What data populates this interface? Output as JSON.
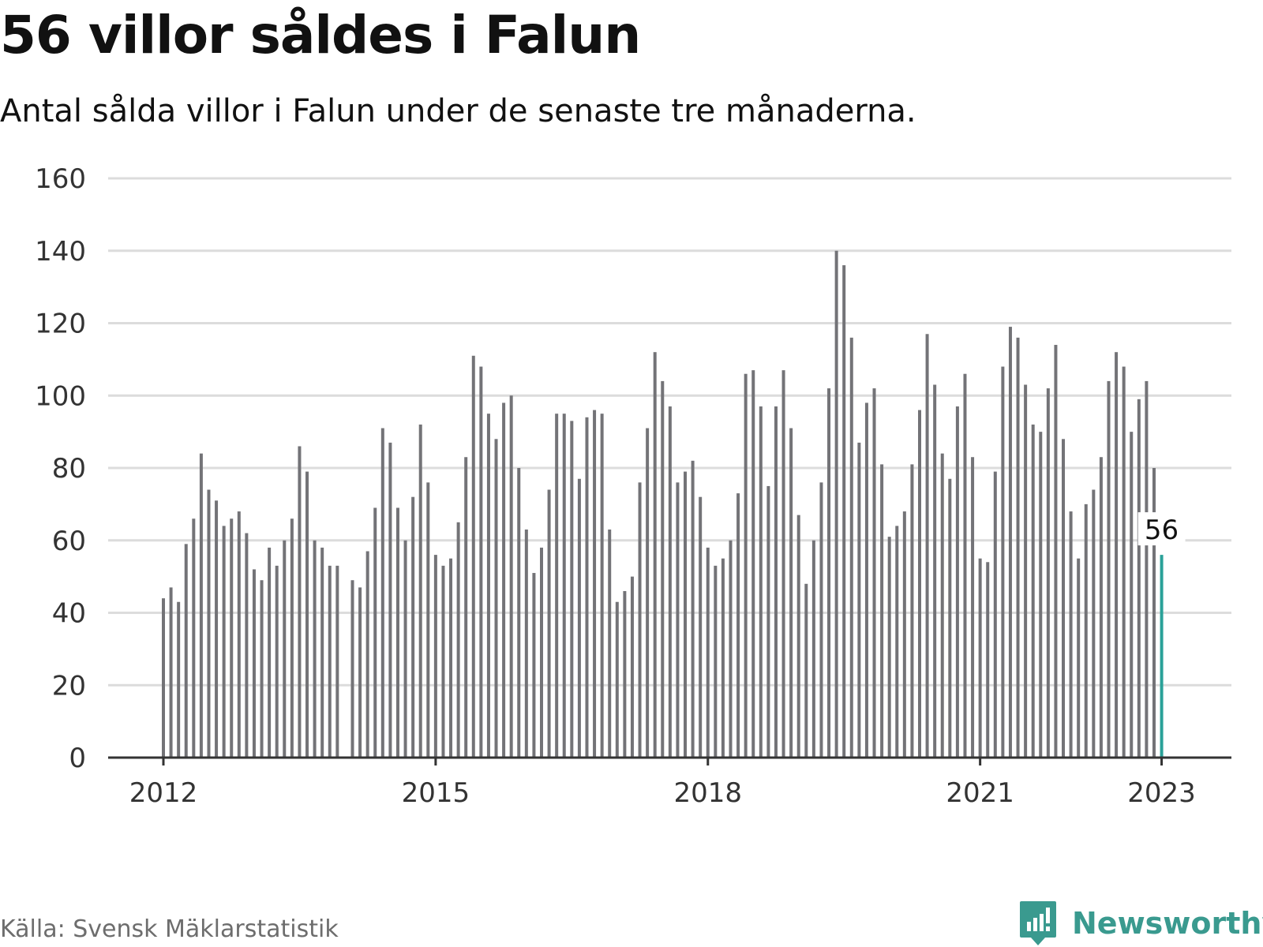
{
  "title": "56 villor såldes i Falun",
  "subtitle": "Antal sålda villor i Falun under de senaste tre månaderna.",
  "source": "Källa: Svensk Mäklarstatistik",
  "brand": "Newsworthy",
  "colors": {
    "bar": "#737377",
    "highlight": "#2aa198",
    "grid": "#dcdcdc",
    "axis": "#333333",
    "brand": "#3a9a8f"
  },
  "chart_data": {
    "type": "bar",
    "title": "56 villor såldes i Falun",
    "xlabel": "",
    "ylabel": "",
    "ylim": [
      0,
      160
    ],
    "yticks": [
      "0",
      "20",
      "40",
      "60",
      "80",
      "100",
      "120",
      "140",
      "160"
    ],
    "xticks": [
      "2012",
      "2015",
      "2018",
      "2021",
      "2023"
    ],
    "grid": true,
    "highlight_label": "56",
    "values": [
      44,
      47,
      43,
      59,
      66,
      84,
      74,
      71,
      64,
      66,
      68,
      62,
      52,
      49,
      58,
      53,
      60,
      66,
      86,
      79,
      60,
      58,
      53,
      53,
      null,
      49,
      47,
      57,
      69,
      91,
      87,
      69,
      60,
      72,
      92,
      76,
      56,
      53,
      55,
      65,
      83,
      111,
      108,
      95,
      88,
      98,
      100,
      80,
      63,
      51,
      58,
      74,
      95,
      95,
      93,
      77,
      94,
      96,
      95,
      63,
      43,
      46,
      50,
      76,
      91,
      112,
      104,
      97,
      76,
      79,
      82,
      72,
      58,
      53,
      55,
      60,
      73,
      106,
      107,
      97,
      75,
      97,
      107,
      91,
      67,
      48,
      60,
      76,
      102,
      140,
      136,
      116,
      87,
      98,
      102,
      81,
      61,
      64,
      68,
      81,
      96,
      117,
      103,
      84,
      77,
      97,
      106,
      83,
      55,
      54,
      79,
      108,
      119,
      116,
      103,
      92,
      90,
      102,
      114,
      88,
      68,
      55,
      70,
      74,
      83,
      104,
      112,
      108,
      90,
      99,
      104,
      80,
      56
    ]
  }
}
